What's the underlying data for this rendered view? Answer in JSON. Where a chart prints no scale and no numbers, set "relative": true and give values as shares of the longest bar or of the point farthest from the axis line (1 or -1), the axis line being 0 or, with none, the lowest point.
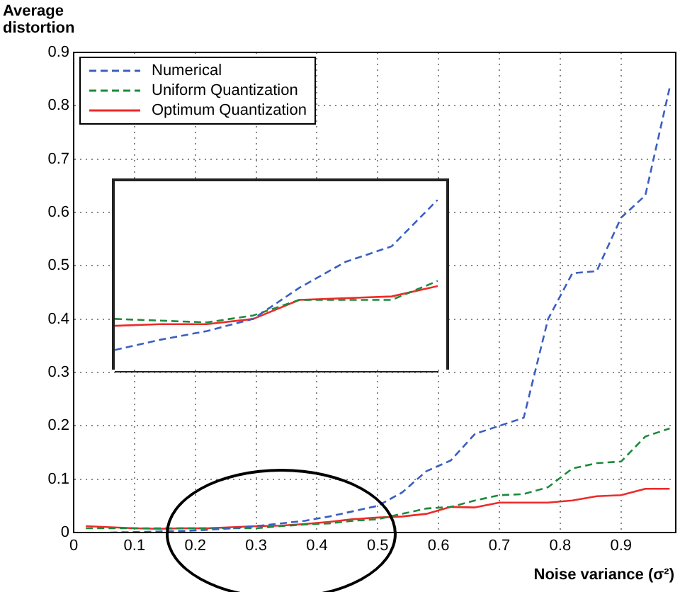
{
  "chart_data": [
    {
      "type": "line",
      "ylabel": "Average distortion",
      "xlabel": "Noise variance (σ²)",
      "xlim": [
        0,
        0.99
      ],
      "ylim": [
        0,
        0.9
      ],
      "xticks": [
        0,
        0.1,
        0.2,
        0.3,
        0.4,
        0.5,
        0.6,
        0.7,
        0.8,
        0.9
      ],
      "yticks": [
        0,
        0.1,
        0.2,
        0.3,
        0.4,
        0.5,
        0.6,
        0.7,
        0.8,
        0.9
      ],
      "grid": true,
      "legend": "top left",
      "marker": "none",
      "x": [
        0.02,
        0.06,
        0.1,
        0.14,
        0.18,
        0.22,
        0.26,
        0.3,
        0.34,
        0.38,
        0.42,
        0.46,
        0.5,
        0.54,
        0.58,
        0.62,
        0.66,
        0.7,
        0.74,
        0.78,
        0.82,
        0.86,
        0.9,
        0.94,
        0.98
      ],
      "series": [
        {
          "name": "Numerical",
          "color": "#3b5fc0",
          "line_style": "dashed",
          "values": [
            null,
            0.0,
            0.001,
            0.002,
            0.003,
            0.005,
            0.008,
            0.012,
            0.017,
            0.022,
            0.03,
            0.04,
            0.05,
            0.075,
            0.115,
            0.135,
            0.185,
            0.2,
            0.215,
            0.4,
            0.486,
            0.49,
            0.59,
            0.632,
            0.834
          ]
        },
        {
          "name": "Uniform Quantization",
          "color": "#1f8a3c",
          "line_style": "dashed",
          "values": [
            0.008,
            0.008,
            0.008,
            0.008,
            0.008,
            0.008,
            0.008,
            0.008,
            0.012,
            0.015,
            0.017,
            0.022,
            0.025,
            0.035,
            0.045,
            0.048,
            0.06,
            0.07,
            0.072,
            0.085,
            0.12,
            0.13,
            0.133,
            0.18,
            0.195
          ]
        },
        {
          "name": "Optimum Quantization",
          "color": "#ee2a2a",
          "line_style": "solid",
          "values": [
            0.012,
            0.01,
            0.008,
            0.007,
            0.008,
            0.008,
            0.01,
            0.012,
            0.013,
            0.016,
            0.02,
            0.025,
            0.028,
            0.03,
            0.035,
            0.048,
            0.047,
            0.056,
            0.056,
            0.056,
            0.06,
            0.068,
            0.07,
            0.082,
            0.082
          ]
        }
      ]
    },
    {
      "type": "line",
      "relative": true,
      "categories": [
        null,
        null,
        null,
        null,
        null,
        null,
        null,
        null
      ],
      "marker": "none",
      "series": [
        {
          "color": "#3b5fc0",
          "line_style": "dashed",
          "values": [
            0.13,
            0.19,
            0.24,
            0.31,
            0.49,
            0.64,
            0.73,
            1
          ]
        },
        {
          "color": "#1f8a3c",
          "line_style": "dashed",
          "values": [
            0.31,
            0.3,
            0.29,
            0.33,
            0.42,
            0.42,
            0.42,
            0.53
          ]
        },
        {
          "color": "#ee2a2a",
          "line_style": "solid",
          "values": [
            0.27,
            0.28,
            0.28,
            0.31,
            0.42,
            0.43,
            0.44,
            0.5
          ]
        }
      ]
    }
  ]
}
